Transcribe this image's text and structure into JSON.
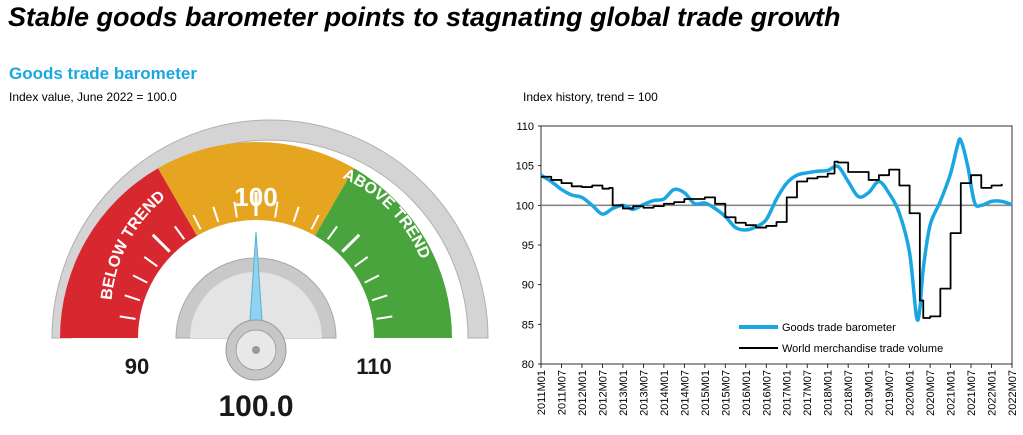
{
  "title": "Stable goods barometer points to stagnating global trade growth",
  "gauge": {
    "subtitle": "Goods trade barometer",
    "note": "Index value, June 2022 = 100.0",
    "min_label": "90",
    "mid_label": "100",
    "max_label": "110",
    "below_label": "BELOW TREND",
    "above_label": "ABOVE TREND",
    "value": 100.0,
    "value_label": "100.0",
    "range": [
      90,
      110
    ],
    "colors": {
      "below": "#d7282f",
      "mid": "#e6a521",
      "above": "#49a43d",
      "needle": "#8fd3f0"
    }
  },
  "chart_note": "Index history, trend = 100",
  "chart_data": {
    "type": "line",
    "ylim": [
      80,
      110
    ],
    "yticks": [
      80,
      85,
      90,
      95,
      100,
      105,
      110
    ],
    "x_tick_labels": [
      "2011M01",
      "2011M07",
      "2012M01",
      "2012M07",
      "2013M01",
      "2013M07",
      "2014M01",
      "2014M07",
      "2015M01",
      "2015M07",
      "2016M01",
      "2016M07",
      "2017M01",
      "2017M07",
      "2018M01",
      "2018M07",
      "2019M01",
      "2019M07",
      "2020M01",
      "2020M07",
      "2021M01",
      "2021M07",
      "2022M01",
      "2022M07"
    ],
    "reference_line": 100,
    "series": [
      {
        "name": "Goods trade barometer",
        "color": "#1aa7e1",
        "x": [
          "2011M01",
          "2011M04",
          "2011M07",
          "2011M10",
          "2012M01",
          "2012M04",
          "2012M07",
          "2012M10",
          "2013M01",
          "2013M04",
          "2013M07",
          "2013M10",
          "2014M01",
          "2014M04",
          "2014M07",
          "2014M10",
          "2015M01",
          "2015M04",
          "2015M07",
          "2015M10",
          "2016M01",
          "2016M04",
          "2016M07",
          "2016M10",
          "2017M01",
          "2017M04",
          "2017M07",
          "2017M10",
          "2018M01",
          "2018M04",
          "2018M07",
          "2018M10",
          "2019M01",
          "2019M04",
          "2019M07",
          "2019M10",
          "2020M01",
          "2020M03",
          "2020M04",
          "2020M05",
          "2020M07",
          "2020M10",
          "2021M01",
          "2021M03",
          "2021M04",
          "2021M06",
          "2021M08",
          "2021M10",
          "2022M01",
          "2022M04",
          "2022M07"
        ],
        "values": [
          103.8,
          103.0,
          102.0,
          101.3,
          101.0,
          100.0,
          98.9,
          99.6,
          100.0,
          99.5,
          100.1,
          100.6,
          100.8,
          102.0,
          101.6,
          100.2,
          100.3,
          99.6,
          98.6,
          97.2,
          96.9,
          97.3,
          98.2,
          100.8,
          102.8,
          103.8,
          104.1,
          104.3,
          104.4,
          104.9,
          103.0,
          101.1,
          101.6,
          103.0,
          101.5,
          99.0,
          94.0,
          86.0,
          87.0,
          92.0,
          97.5,
          100.5,
          104.0,
          107.5,
          108.2,
          105.0,
          100.4,
          100.0,
          100.5,
          100.5,
          100.1
        ]
      },
      {
        "name": "World merchandise trade volume",
        "color": "#000000",
        "x": [
          "2011M01",
          "2011M04",
          "2011M07",
          "2011M10",
          "2012M01",
          "2012M04",
          "2012M07",
          "2012M09",
          "2012M10",
          "2013M01",
          "2013M04",
          "2013M07",
          "2013M10",
          "2014M01",
          "2014M04",
          "2014M07",
          "2014M10",
          "2015M01",
          "2015M04",
          "2015M07",
          "2015M10",
          "2016M01",
          "2016M04",
          "2016M07",
          "2016M10",
          "2017M01",
          "2017M04",
          "2017M07",
          "2017M10",
          "2018M01",
          "2018M03",
          "2018M04",
          "2018M07",
          "2018M10",
          "2019M01",
          "2019M04",
          "2019M07",
          "2019M10",
          "2020M01",
          "2020M04",
          "2020M05",
          "2020M07",
          "2020M10",
          "2021M01",
          "2021M04",
          "2021M07",
          "2021M10",
          "2022M01",
          "2022M04"
        ],
        "values": [
          103.6,
          103.2,
          102.8,
          102.4,
          102.3,
          102.5,
          102.1,
          102.2,
          100.0,
          99.6,
          99.9,
          99.7,
          99.9,
          100.2,
          100.4,
          100.8,
          100.8,
          101.0,
          100.2,
          98.5,
          97.8,
          97.5,
          97.2,
          97.4,
          97.9,
          101.0,
          103.0,
          103.4,
          103.6,
          104.0,
          105.5,
          105.4,
          104.2,
          104.2,
          103.2,
          103.8,
          104.5,
          102.5,
          99.0,
          88.0,
          85.8,
          86.0,
          89.5,
          96.5,
          102.8,
          103.8,
          102.2,
          102.5,
          102.7
        ]
      }
    ]
  }
}
